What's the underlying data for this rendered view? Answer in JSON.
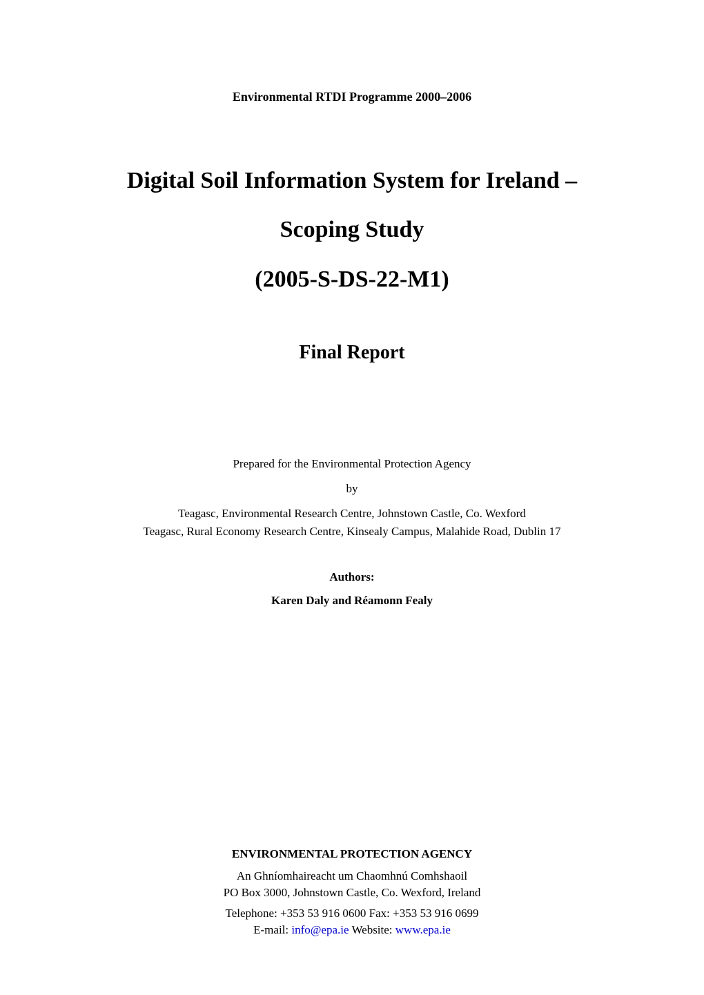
{
  "colors": {
    "background": "#ffffff",
    "text": "#000000",
    "link": "#0000cc"
  },
  "typography": {
    "font_family": "Times New Roman",
    "programme_size_pt": 14,
    "main_title_size_pt": 26,
    "report_type_size_pt": 22,
    "body_size_pt": 13,
    "authors_heading_size_pt": 13,
    "agency_name_size_pt": 13
  },
  "programme": "Environmental RTDI Programme 2000–2006",
  "title": {
    "line1": "Digital Soil Information System for Ireland –",
    "line2": "Scoping Study",
    "line3": "(2005-S-DS-22-M1)"
  },
  "report_type": "Final Report",
  "prepared_for": "Prepared for the Environmental Protection Agency",
  "by": "by",
  "institutions": [
    "Teagasc, Environmental Research Centre, Johnstown Castle, Co. Wexford",
    "Teagasc, Rural Economy Research Centre, Kinsealy Campus, Malahide Road, Dublin 17"
  ],
  "authors_heading": "Authors:",
  "authors": "Karen Daly and Réamonn Fealy",
  "agency": {
    "name": "ENVIRONMENTAL PROTECTION AGENCY",
    "name_irish": "An Ghníomhaireacht um Chaomhnú Comhshaoil",
    "address": "PO Box 3000, Johnstown Castle, Co. Wexford, Ireland",
    "phone_fax": "Telephone: +353 53 916 0600 Fax: +353 53 916 0699",
    "email_label": "E-mail: ",
    "email": "info@epa.ie",
    "website_label": "  Website: ",
    "website": "www.epa.ie"
  }
}
